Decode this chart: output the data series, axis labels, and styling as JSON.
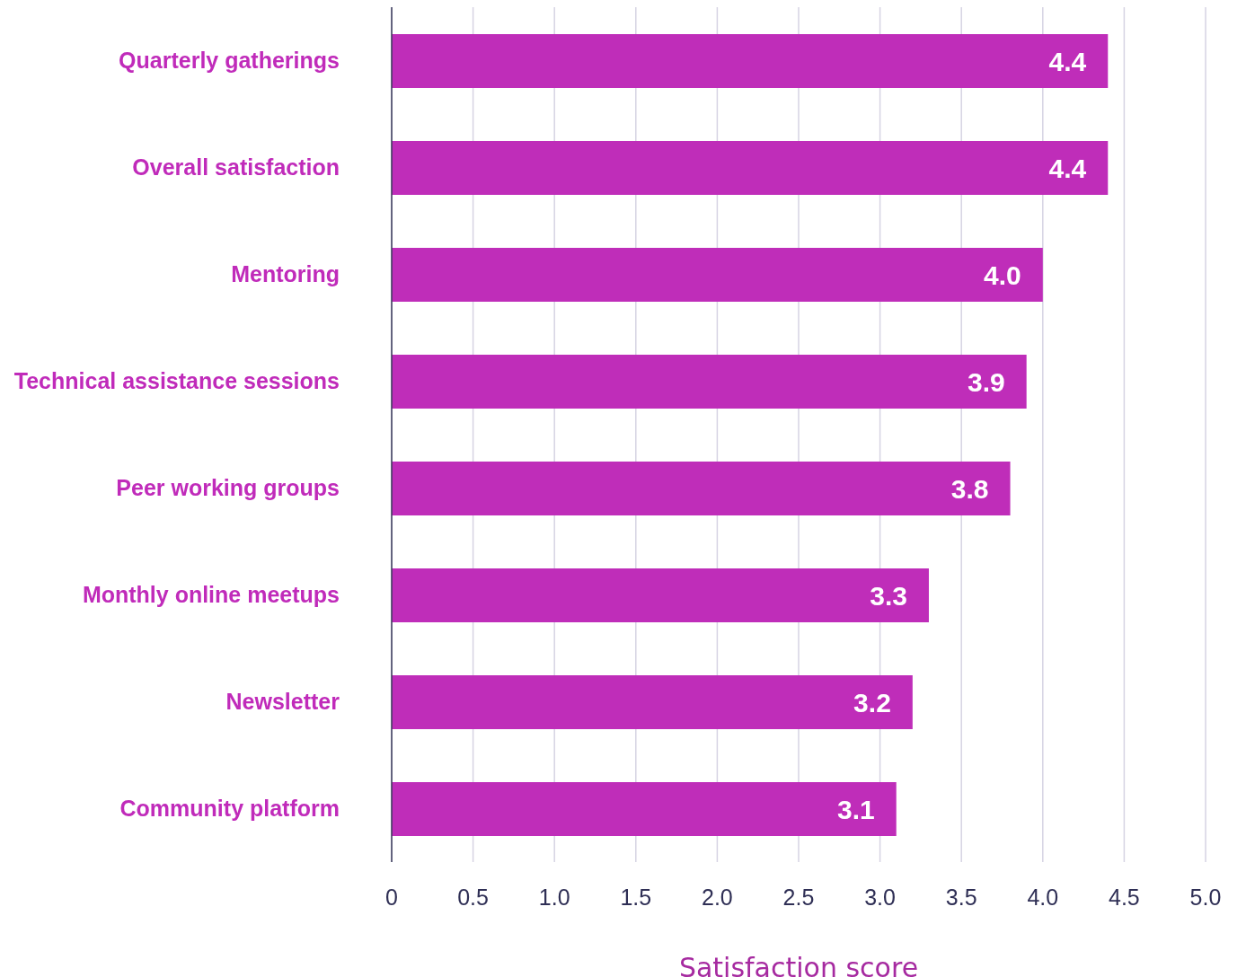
{
  "chart_data": {
    "type": "bar",
    "orientation": "horizontal",
    "xlabel": "Satisfaction score",
    "categories": [
      "Quarterly gatherings",
      "Overall satisfaction",
      "Mentoring",
      "Technical assistance sessions",
      "Peer working groups",
      "Monthly online meetups",
      "Newsletter",
      "Community platform"
    ],
    "values": [
      4.4,
      4.4,
      4.0,
      3.9,
      3.8,
      3.3,
      3.2,
      3.1
    ],
    "color": "#bf2db9",
    "xlim": [
      0,
      5
    ],
    "xticks": [
      0,
      0.5,
      {
        "value": 1,
        "label": "1.0"
      },
      1.5,
      {
        "value": 2,
        "label": "2.0"
      },
      2.5,
      {
        "value": 3,
        "label": "3.0"
      },
      3.5,
      {
        "value": 4,
        "label": "4.0"
      },
      4.5,
      {
        "value": 5,
        "label": "5.0"
      }
    ],
    "grid": "x",
    "value_labels": [
      "4.4",
      "4.4",
      "4.0",
      "3.9",
      "3.8",
      "3.3",
      "3.2",
      "3.1"
    ]
  }
}
